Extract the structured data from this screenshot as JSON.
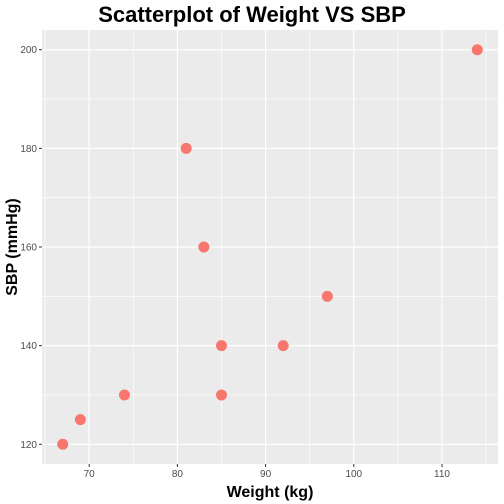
{
  "chart_data": {
    "type": "scatter",
    "title": "Scatterplot of Weight VS SBP",
    "xlabel": "Weight (kg)",
    "ylabel": "SBP (mmHg)",
    "xlim": [
      64.65,
      116.35
    ],
    "ylim": [
      116,
      204
    ],
    "xticks": [
      70,
      80,
      90,
      100,
      110
    ],
    "yticks": [
      120,
      140,
      160,
      180,
      200
    ],
    "grid": true,
    "point_color": "#F8766D",
    "panel_color": "#EBEBEB",
    "grid_color": "#FFFFFF",
    "points": [
      {
        "x": 67,
        "y": 120
      },
      {
        "x": 69,
        "y": 125
      },
      {
        "x": 74,
        "y": 130
      },
      {
        "x": 81,
        "y": 180
      },
      {
        "x": 83,
        "y": 160
      },
      {
        "x": 85,
        "y": 140
      },
      {
        "x": 85,
        "y": 130
      },
      {
        "x": 92,
        "y": 140
      },
      {
        "x": 97,
        "y": 150
      },
      {
        "x": 114,
        "y": 200
      }
    ]
  }
}
